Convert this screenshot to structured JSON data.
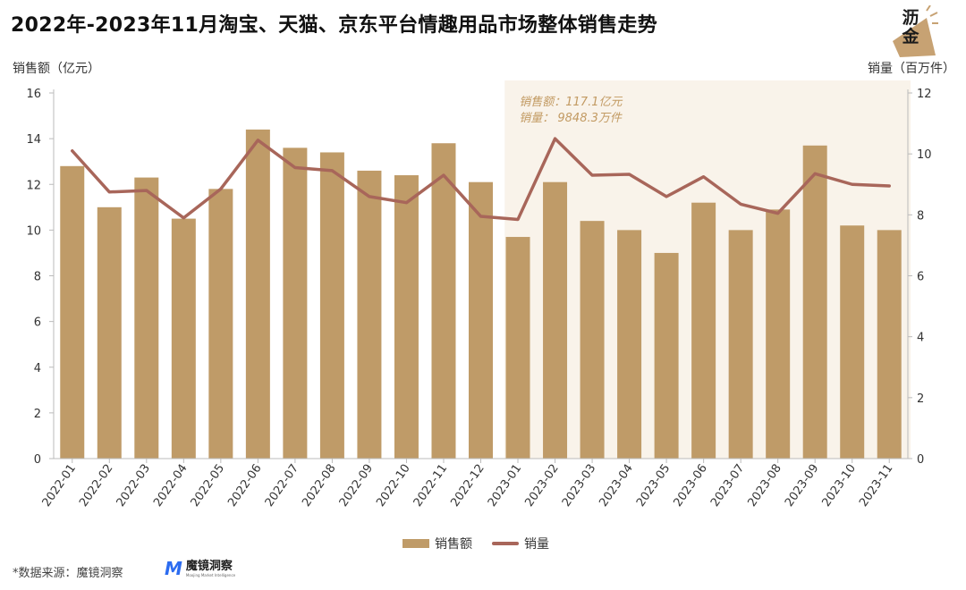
{
  "title": "2022年-2023年11月淘宝、天猫、京东平台情趣用品市场整体销售走势",
  "logo": {
    "text_top": "沥",
    "text_bottom": "金",
    "icon": "liqin-logo-icon"
  },
  "footer": {
    "source": "*数据来源：魔镜洞察",
    "brand_name": "魔镜洞察",
    "brand_mark": "M",
    "brand_sub": "Moojing Market Intelligence"
  },
  "colors": {
    "bar": "#bf9b68",
    "line": "#a8665a",
    "highlight_bg": "#f9f3ea",
    "annotation": "#c29a62"
  },
  "chart_data": {
    "type": "bar+line",
    "categories": [
      "2022-01",
      "2022-02",
      "2022-03",
      "2022-04",
      "2022-05",
      "2022-06",
      "2022-07",
      "2022-08",
      "2022-09",
      "2022-10",
      "2022-11",
      "2022-12",
      "2023-01",
      "2023-02",
      "2023-03",
      "2023-04",
      "2023-05",
      "2023-06",
      "2023-07",
      "2023-08",
      "2023-09",
      "2023-10",
      "2023-11"
    ],
    "ylabel_left": "销售额（亿元）",
    "ylabel_right": "销量（百万件）",
    "ylim_left": [
      0,
      16
    ],
    "ylim_right": [
      0,
      12
    ],
    "yticks_left": [
      0,
      2,
      4,
      6,
      8,
      10,
      12,
      14,
      16
    ],
    "yticks_right": [
      0,
      2,
      4,
      6,
      8,
      10,
      12
    ],
    "series": [
      {
        "name": "销售额",
        "type": "bar",
        "axis": "left",
        "values": [
          12.8,
          11.0,
          12.3,
          10.5,
          11.8,
          14.4,
          13.6,
          13.4,
          12.6,
          12.4,
          13.8,
          12.1,
          9.7,
          12.1,
          10.4,
          10.0,
          9.0,
          11.2,
          10.0,
          10.9,
          13.7,
          10.2,
          10.0
        ]
      },
      {
        "name": "销量",
        "type": "line",
        "axis": "right",
        "values": [
          10.1,
          8.75,
          8.8,
          7.9,
          8.85,
          10.45,
          9.55,
          9.45,
          8.6,
          8.4,
          9.3,
          7.95,
          7.85,
          10.5,
          9.3,
          9.33,
          8.6,
          9.25,
          8.35,
          8.05,
          9.35,
          9.0,
          8.95
        ]
      }
    ],
    "highlight": {
      "from": "2023-01",
      "to": "2023-11"
    },
    "annotation": {
      "line1": "销售额：117.1亿元",
      "line2": "销量：   9848.3万件"
    },
    "legend": {
      "position": "bottom-center"
    },
    "grid": false
  }
}
